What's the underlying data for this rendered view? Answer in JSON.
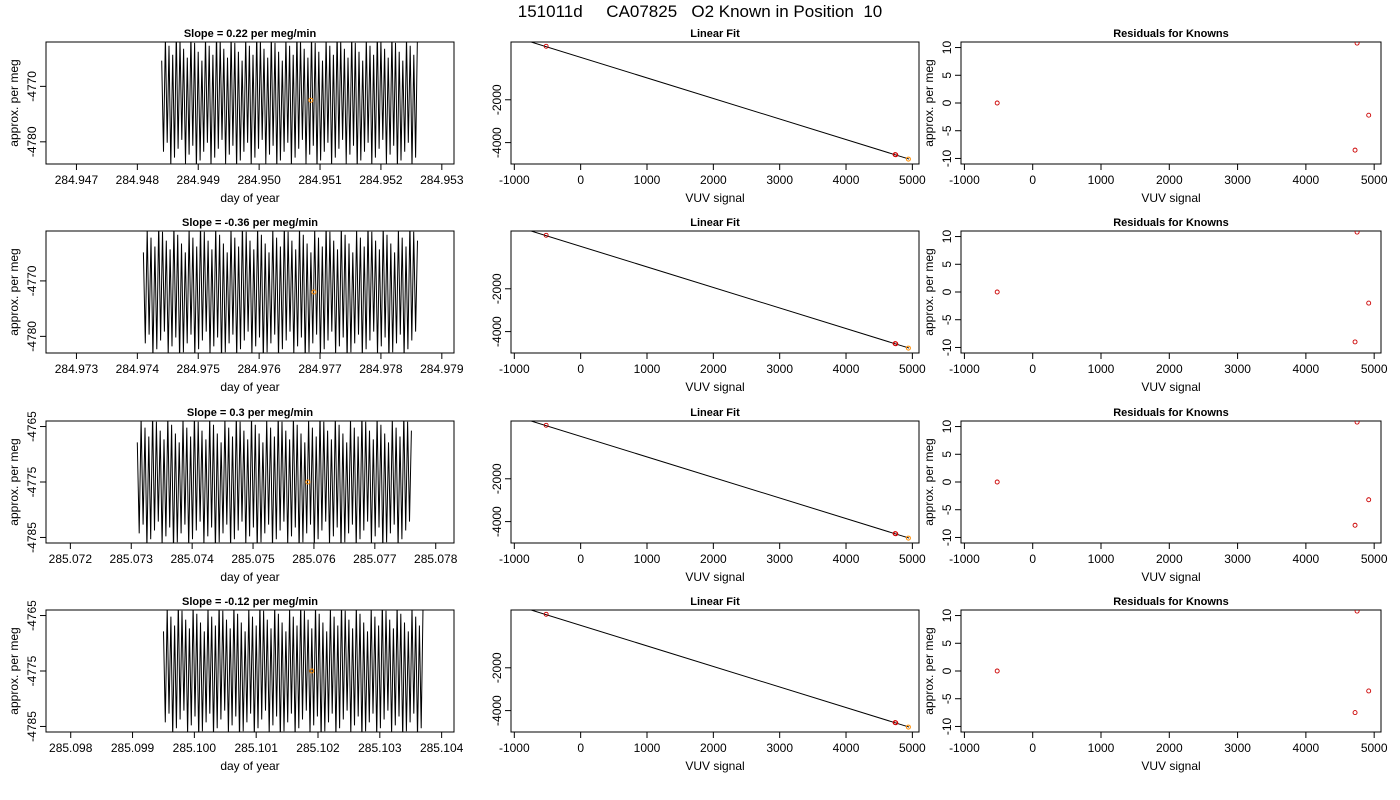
{
  "page": {
    "title": "151011d     CA07825   O2 Known in Position  10"
  },
  "chart_data": [
    {
      "type": "line",
      "title": "Slope =  0.22  per meg/min",
      "xlabel": "day of year",
      "ylabel": "approx. per meg",
      "xlim": [
        284.9465,
        284.9532
      ],
      "ylim": [
        -4784,
        -4762
      ],
      "xticks": [
        284.947,
        284.948,
        284.949,
        284.95,
        284.951,
        284.952,
        284.953
      ],
      "xtick_labels": [
        "284.947",
        "284.948",
        "284.949",
        "284.950",
        "284.951",
        "284.952",
        "284.953"
      ],
      "yticks": [
        -4770,
        -4780
      ],
      "ytick_labels": [
        "-4770",
        "-4780"
      ],
      "series": [
        {
          "x_start": 284.9484,
          "x_end": 284.9526,
          "y_center": -4772.5,
          "amplitude": 13,
          "cycles": 70
        }
      ],
      "marker": {
        "x": 284.95085,
        "y": -4772.5,
        "color": "#ff8c00"
      },
      "grid": false
    },
    {
      "type": "scatter",
      "title": "Linear Fit",
      "xlabel": "VUV signal",
      "ylabel": "",
      "xlim": [
        -1050,
        5100
      ],
      "ylim": [
        -5000,
        700
      ],
      "xticks": [
        -1000,
        0,
        1000,
        2000,
        3000,
        4000,
        5000
      ],
      "xtick_labels": [
        "-1000",
        "0",
        "1000",
        "2000",
        "3000",
        "4000",
        "5000"
      ],
      "yticks": [
        -2000,
        -4000
      ],
      "ytick_labels": [
        "-2000",
        "-4000"
      ],
      "points": [
        {
          "x": -520,
          "y": 500
        },
        {
          "x": 4740,
          "y": -4560
        },
        {
          "x": 4750,
          "y": -4570
        }
      ],
      "fit_line": {
        "x": [
          -800,
          4950
        ],
        "y": [
          750,
          -4770
        ]
      },
      "highlight": {
        "x": 4940,
        "y": -4770,
        "color": "#ff8c00"
      },
      "grid": false
    },
    {
      "type": "scatter",
      "title": "Residuals for Knowns",
      "xlabel": "VUV signal",
      "ylabel": "approx. per meg",
      "xlim": [
        -1050,
        5100
      ],
      "ylim": [
        -11,
        11
      ],
      "xticks": [
        -1000,
        0,
        1000,
        2000,
        3000,
        4000,
        5000
      ],
      "xtick_labels": [
        "-1000",
        "0",
        "1000",
        "2000",
        "3000",
        "4000",
        "5000"
      ],
      "yticks": [
        10,
        5,
        0,
        -5,
        -10
      ],
      "ytick_labels": [
        "10",
        "5",
        "0",
        "-5",
        "-10"
      ],
      "points": [
        {
          "x": -520,
          "y": 0
        },
        {
          "x": 4750,
          "y": 10.8
        },
        {
          "x": 4720,
          "y": -8.5
        },
        {
          "x": 4920,
          "y": -2.2
        }
      ],
      "grid": false
    },
    {
      "type": "line",
      "title": "Slope =  -0.36  per meg/min",
      "xlabel": "day of year",
      "ylabel": "approx. per meg",
      "xlim": [
        284.9725,
        284.9792
      ],
      "ylim": [
        -4783,
        -4761
      ],
      "xticks": [
        284.973,
        284.974,
        284.975,
        284.976,
        284.977,
        284.978,
        284.979
      ],
      "xtick_labels": [
        "284.973",
        "284.974",
        "284.975",
        "284.976",
        "284.977",
        "284.978",
        "284.979"
      ],
      "yticks": [
        -4770,
        -4780
      ],
      "ytick_labels": [
        "-4770",
        "-4780"
      ],
      "series": [
        {
          "x_start": 284.9741,
          "x_end": 284.9786,
          "y_center": -4772,
          "amplitude": 13,
          "cycles": 72
        }
      ],
      "marker": {
        "x": 284.9769,
        "y": -4772,
        "color": "#ff8c00"
      },
      "grid": false
    },
    {
      "type": "scatter",
      "title": "Linear Fit",
      "xlabel": "VUV signal",
      "ylabel": "",
      "xlim": [
        -1050,
        5100
      ],
      "ylim": [
        -5000,
        700
      ],
      "xticks": [
        -1000,
        0,
        1000,
        2000,
        3000,
        4000,
        5000
      ],
      "xtick_labels": [
        "-1000",
        "0",
        "1000",
        "2000",
        "3000",
        "4000",
        "5000"
      ],
      "yticks": [
        -2000,
        -4000
      ],
      "ytick_labels": [
        "-2000",
        "-4000"
      ],
      "points": [
        {
          "x": -520,
          "y": 500
        },
        {
          "x": 4740,
          "y": -4560
        },
        {
          "x": 4750,
          "y": -4570
        }
      ],
      "fit_line": {
        "x": [
          -800,
          4950
        ],
        "y": [
          750,
          -4770
        ]
      },
      "highlight": {
        "x": 4940,
        "y": -4770,
        "color": "#ff8c00"
      },
      "grid": false
    },
    {
      "type": "scatter",
      "title": "Residuals for Knowns",
      "xlabel": "VUV signal",
      "ylabel": "approx. per meg",
      "xlim": [
        -1050,
        5100
      ],
      "ylim": [
        -11,
        11
      ],
      "xticks": [
        -1000,
        0,
        1000,
        2000,
        3000,
        4000,
        5000
      ],
      "xtick_labels": [
        "-1000",
        "0",
        "1000",
        "2000",
        "3000",
        "4000",
        "5000"
      ],
      "yticks": [
        10,
        5,
        0,
        -5,
        -10
      ],
      "ytick_labels": [
        "10",
        "5",
        "0",
        "-5",
        "-10"
      ],
      "points": [
        {
          "x": -520,
          "y": 0
        },
        {
          "x": 4750,
          "y": 10.8
        },
        {
          "x": 4720,
          "y": -9.0
        },
        {
          "x": 4920,
          "y": -2.0
        }
      ],
      "grid": false
    },
    {
      "type": "line",
      "title": "Slope =  0.3  per meg/min",
      "xlabel": "day of year",
      "ylabel": "approx. per meg",
      "xlim": [
        285.0716,
        285.0783
      ],
      "ylim": [
        -4786,
        -4764
      ],
      "xticks": [
        285.072,
        285.073,
        285.074,
        285.075,
        285.076,
        285.077,
        285.078
      ],
      "xtick_labels": [
        "285.072",
        "285.073",
        "285.074",
        "285.075",
        "285.076",
        "285.077",
        "285.078"
      ],
      "yticks": [
        -4765,
        -4775,
        -4785
      ],
      "ytick_labels": [
        "-4765",
        "-4775",
        "-4785"
      ],
      "series": [
        {
          "x_start": 285.0731,
          "x_end": 285.0776,
          "y_center": -4775,
          "amplitude": 13,
          "cycles": 72
        }
      ],
      "marker": {
        "x": 285.0759,
        "y": -4775,
        "color": "#ff8c00"
      },
      "grid": false
    },
    {
      "type": "scatter",
      "title": "Linear Fit",
      "xlabel": "VUV signal",
      "ylabel": "",
      "xlim": [
        -1050,
        5100
      ],
      "ylim": [
        -5000,
        700
      ],
      "xticks": [
        -1000,
        0,
        1000,
        2000,
        3000,
        4000,
        5000
      ],
      "xtick_labels": [
        "-1000",
        "0",
        "1000",
        "2000",
        "3000",
        "4000",
        "5000"
      ],
      "yticks": [
        -2000,
        -4000
      ],
      "ytick_labels": [
        "-2000",
        "-4000"
      ],
      "points": [
        {
          "x": -520,
          "y": 500
        },
        {
          "x": 4740,
          "y": -4560
        },
        {
          "x": 4750,
          "y": -4570
        }
      ],
      "fit_line": {
        "x": [
          -800,
          4950
        ],
        "y": [
          750,
          -4770
        ]
      },
      "highlight": {
        "x": 4940,
        "y": -4770,
        "color": "#ff8c00"
      },
      "grid": false
    },
    {
      "type": "scatter",
      "title": "Residuals for Knowns",
      "xlabel": "VUV signal",
      "ylabel": "approx. per meg",
      "xlim": [
        -1050,
        5100
      ],
      "ylim": [
        -11,
        11
      ],
      "xticks": [
        -1000,
        0,
        1000,
        2000,
        3000,
        4000,
        5000
      ],
      "xtick_labels": [
        "-1000",
        "0",
        "1000",
        "2000",
        "3000",
        "4000",
        "5000"
      ],
      "yticks": [
        10,
        5,
        0,
        -5,
        -10
      ],
      "ytick_labels": [
        "10",
        "5",
        "0",
        "-5",
        "-10"
      ],
      "points": [
        {
          "x": -520,
          "y": 0
        },
        {
          "x": 4750,
          "y": 10.8
        },
        {
          "x": 4720,
          "y": -7.8
        },
        {
          "x": 4920,
          "y": -3.2
        }
      ],
      "grid": false
    },
    {
      "type": "line",
      "title": "Slope =  -0.12  per meg/min",
      "xlabel": "day of year",
      "ylabel": "approx. per meg",
      "xlim": [
        285.0976,
        285.1042
      ],
      "ylim": [
        -4786,
        -4764
      ],
      "xticks": [
        285.098,
        285.099,
        285.1,
        285.101,
        285.102,
        285.103,
        285.104
      ],
      "xtick_labels": [
        "285.098",
        "285.099",
        "285.100",
        "285.101",
        "285.102",
        "285.103",
        "285.104"
      ],
      "yticks": [
        -4765,
        -4775,
        -4785
      ],
      "ytick_labels": [
        "-4765",
        "-4775",
        "-4785"
      ],
      "series": [
        {
          "x_start": 285.0995,
          "x_end": 285.1037,
          "y_center": -4775,
          "amplitude": 13,
          "cycles": 70
        }
      ],
      "marker": {
        "x": 285.1019,
        "y": -4775,
        "color": "#ff8c00"
      },
      "grid": false
    },
    {
      "type": "scatter",
      "title": "Linear Fit",
      "xlabel": "VUV signal",
      "ylabel": "",
      "xlim": [
        -1050,
        5100
      ],
      "ylim": [
        -5000,
        700
      ],
      "xticks": [
        -1000,
        0,
        1000,
        2000,
        3000,
        4000,
        5000
      ],
      "xtick_labels": [
        "-1000",
        "0",
        "1000",
        "2000",
        "3000",
        "4000",
        "5000"
      ],
      "yticks": [
        -2000,
        -4000
      ],
      "ytick_labels": [
        "-2000",
        "-4000"
      ],
      "points": [
        {
          "x": -520,
          "y": 500
        },
        {
          "x": 4740,
          "y": -4560
        },
        {
          "x": 4750,
          "y": -4570
        }
      ],
      "fit_line": {
        "x": [
          -800,
          4950
        ],
        "y": [
          750,
          -4770
        ]
      },
      "highlight": {
        "x": 4940,
        "y": -4770,
        "color": "#ff8c00"
      },
      "grid": false
    },
    {
      "type": "scatter",
      "title": "Residuals for Knowns",
      "xlabel": "VUV signal",
      "ylabel": "approx. per meg",
      "xlim": [
        -1050,
        5100
      ],
      "ylim": [
        -11,
        11
      ],
      "xticks": [
        -1000,
        0,
        1000,
        2000,
        3000,
        4000,
        5000
      ],
      "xtick_labels": [
        "-1000",
        "0",
        "1000",
        "2000",
        "3000",
        "4000",
        "5000"
      ],
      "yticks": [
        10,
        5,
        0,
        -5,
        -10
      ],
      "ytick_labels": [
        "10",
        "5",
        "0",
        "-5",
        "-10"
      ],
      "points": [
        {
          "x": -520,
          "y": 0
        },
        {
          "x": 4750,
          "y": 10.8
        },
        {
          "x": 4720,
          "y": -7.5
        },
        {
          "x": 4920,
          "y": -3.6
        }
      ],
      "grid": false
    }
  ],
  "colors": {
    "axis": "#000000",
    "trace": "#000000",
    "points": "#cc0000",
    "highlight": "#ff8c00"
  }
}
